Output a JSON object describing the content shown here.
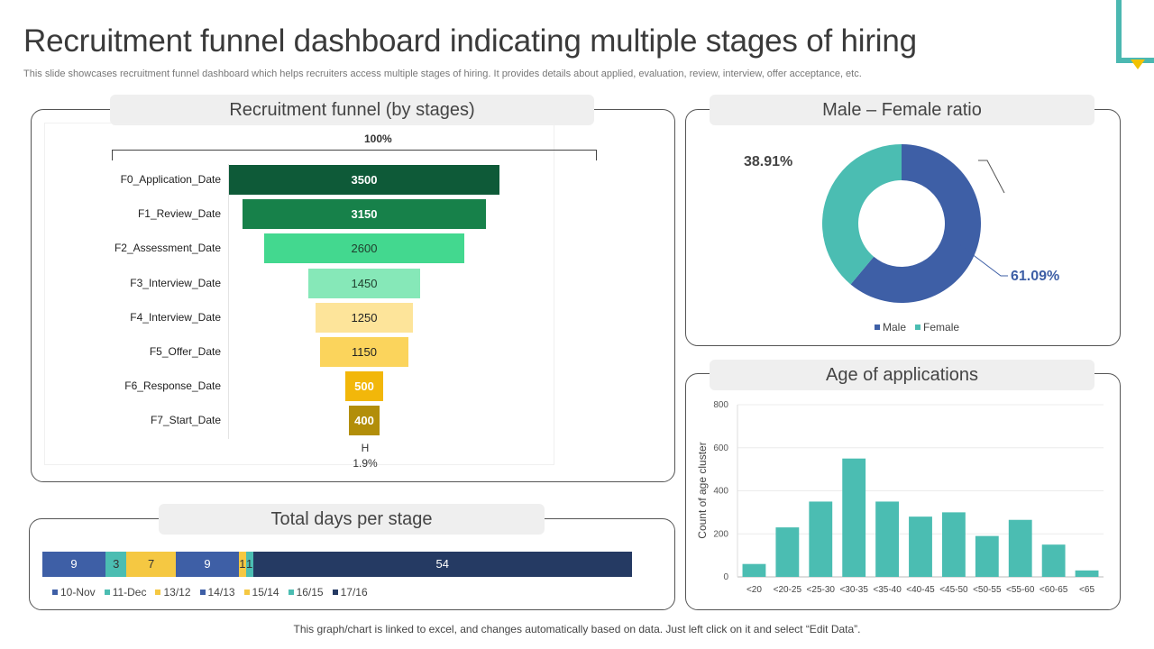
{
  "header": {
    "title": "Recruitment funnel dashboard indicating multiple stages of hiring",
    "subtitle": "This slide showcases recruitment funnel dashboard which helps recruiters access multiple stages of hiring. It provides details about applied, evaluation, review, interview, offer acceptance, etc."
  },
  "panels": {
    "funnel_title": "Recruitment funnel (by stages)",
    "gender_title": "Male – Female ratio",
    "age_title": "Age of applications",
    "days_title": "Total days per stage"
  },
  "footer": "This graph/chart is linked to excel,  and changes automatically based on data. Just left click on it and select “Edit Data”.",
  "colors": {
    "teal_accent": "#4bb8b1",
    "yellow_accent": "#f2c200",
    "male": "#3e5fa6",
    "female": "#4bbdb2",
    "age_bar": "#4bbdb2"
  },
  "chart_data": [
    {
      "type": "bar",
      "subtype": "funnel",
      "title": "Recruitment funnel (by stages)",
      "top_label": "100%",
      "categories": [
        "F0_Application_Date",
        "F1_Review_Date",
        "F2_Assessment_Date",
        "F3_Interview_Date",
        "F4_Interview_Date",
        "F5_Offer_Date",
        "F6_Response_Date",
        "F7_Start_Date"
      ],
      "values": [
        3500,
        3150,
        2600,
        1450,
        1250,
        1150,
        500,
        400
      ],
      "colors": [
        "#0e5a38",
        "#17814a",
        "#43d88f",
        "#86e8b8",
        "#fde49a",
        "#fbd45c",
        "#f2b70a",
        "#b28e0a"
      ],
      "label_colors": [
        "#ffffff",
        "#ffffff",
        "#1f3d2c",
        "#1f3d2c",
        "#222222",
        "#222222",
        "#ffffff",
        "#ffffff"
      ],
      "bottom_label": "H",
      "bottom_pct": "1.9%"
    },
    {
      "type": "pie",
      "subtype": "donut",
      "title": "Male – Female ratio",
      "labels": [
        "Male",
        "Female"
      ],
      "values": [
        61.09,
        38.91
      ],
      "value_labels": [
        "61.09%",
        "38.91%"
      ],
      "colors": [
        "#3e5fa6",
        "#4bbdb2"
      ]
    },
    {
      "type": "bar",
      "title": "Age of applications",
      "categories": [
        "<20",
        "<20-25",
        "<25-30",
        "<30-35",
        "<35-40",
        "<40-45",
        "<45-50",
        "<50-55",
        "<55-60",
        "<60-65",
        "<65"
      ],
      "values": [
        60,
        230,
        350,
        550,
        350,
        280,
        300,
        190,
        265,
        150,
        30
      ],
      "xlabel": "",
      "ylabel": "Count of age cluster",
      "ylim": [
        0,
        800
      ],
      "yticks": [
        0,
        200,
        400,
        600,
        800
      ],
      "grid": true
    },
    {
      "type": "bar",
      "subtype": "stacked-horizontal",
      "title": "Total days per stage",
      "series": [
        {
          "name": "10-Nov",
          "value": 9,
          "label": "9",
          "color": "#3e5fa6"
        },
        {
          "name": "11-Dec",
          "value": 3,
          "label": "3",
          "color": "#4bbdb2"
        },
        {
          "name": "13/12",
          "value": 7,
          "label": "7",
          "color": "#f5c842"
        },
        {
          "name": "14/13",
          "value": 9,
          "label": "9",
          "color": "#3e5fa6"
        },
        {
          "name": "15/14",
          "value": 1,
          "label": "1",
          "color": "#f5c842"
        },
        {
          "name": "16/15",
          "value": 1,
          "label": "1",
          "color": "#4bbdb2"
        },
        {
          "name": "17/16",
          "value": 54,
          "label": "54",
          "color": "#253a63"
        }
      ]
    }
  ]
}
